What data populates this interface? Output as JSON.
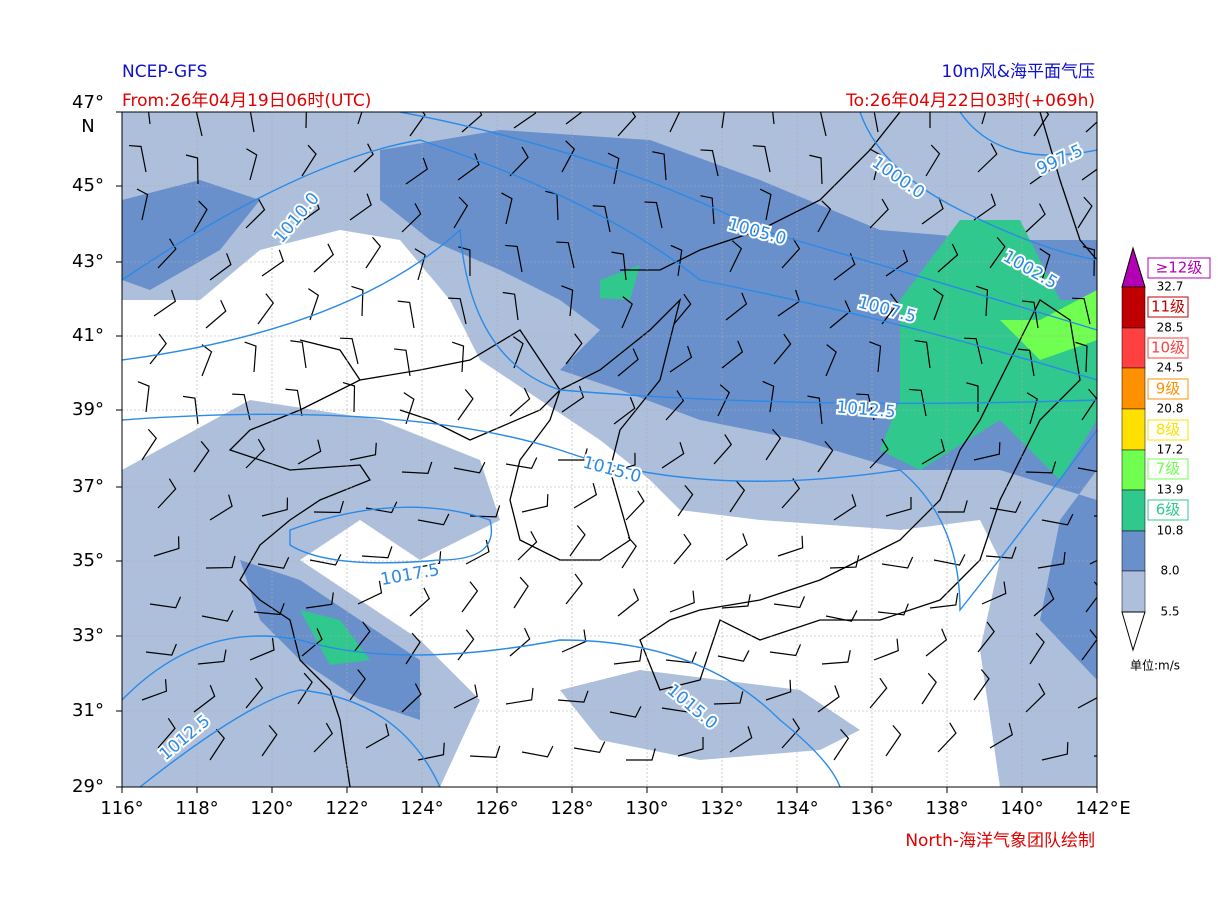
{
  "header": {
    "left_title": "NCEP-GFS",
    "left_subtitle": "From:26年04月19日06时(UTC)",
    "right_title": "10m风&海平面气压",
    "right_subtitle": "To:26年04月22日03时(+069h)"
  },
  "map": {
    "lat_ticks": [
      "47°",
      "45°",
      "43°",
      "41°",
      "39°",
      "37°",
      "35°",
      "33°",
      "31°",
      "29°"
    ],
    "lat_unit": "N",
    "lon_ticks": [
      "116°",
      "118°",
      "120°",
      "122°",
      "124°",
      "126°",
      "128°",
      "130°",
      "132°",
      "134°",
      "136°",
      "138°",
      "140°",
      "142°"
    ],
    "lon_unit": "E",
    "isobar_labels": [
      "997.5",
      "1000.0",
      "1005.0",
      "1002.5",
      "1007.5",
      "1010.0",
      "1012.5",
      "1015.0",
      "1017.5",
      "1015.0",
      "1012.5"
    ]
  },
  "colorbar": {
    "grades": [
      "≥12级",
      "11级",
      "10级",
      "9级",
      "8级",
      "7级",
      "6级"
    ],
    "bounds": [
      "32.7",
      "28.5",
      "24.5",
      "20.8",
      "17.2",
      "13.9",
      "10.8",
      "8.0",
      "5.5"
    ],
    "unit": "单位:m/s"
  },
  "footer": {
    "credit": "North-海洋气象团队绘制"
  }
}
